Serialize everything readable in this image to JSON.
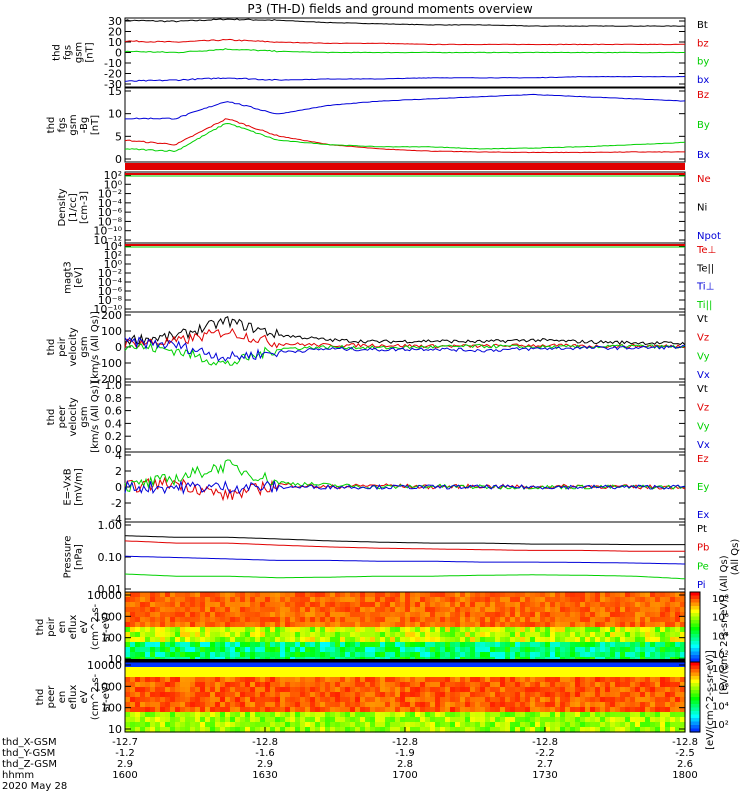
{
  "title": "P3 (TH-D) fields and ground moments overview",
  "colors": {
    "black": "#000000",
    "red": "#e00000",
    "green": "#00d000",
    "blue": "#0000d8"
  },
  "chart_data": [
    {
      "type": "line",
      "panel": "fgs-gsm",
      "ylabel": [
        "thd",
        "fgs",
        "gsm",
        "[nT]"
      ],
      "yticks": [
        "30",
        "20",
        "10",
        "0",
        "-10",
        "-20",
        "-30"
      ],
      "ylim": [
        -30,
        30
      ],
      "series": [
        {
          "name": "Bt",
          "color": "#000000",
          "values": [
            28,
            27,
            29,
            28,
            26,
            25,
            24,
            24,
            23,
            23,
            23,
            23
          ]
        },
        {
          "name": "bz",
          "color": "#e00000",
          "values": [
            10,
            9,
            11,
            9,
            8,
            8,
            7,
            7,
            7,
            7,
            7,
            7
          ]
        },
        {
          "name": "by",
          "color": "#00d000",
          "values": [
            1,
            0,
            3,
            1,
            0,
            0,
            0,
            0,
            0,
            0,
            0,
            0
          ]
        },
        {
          "name": "bx",
          "color": "#0000d8",
          "values": [
            -25,
            -24,
            -22,
            -24,
            -23,
            -23,
            -22,
            -22,
            -22,
            -21,
            -21,
            -21
          ]
        }
      ]
    },
    {
      "type": "line",
      "panel": "fgs-gse",
      "ylabel": [
        "thd",
        "fgs",
        "gsm",
        "-Bg",
        "[nT]"
      ],
      "yticks": [
        "15",
        "10",
        "5",
        "0"
      ],
      "ylim": [
        -2,
        15
      ],
      "series": [
        {
          "name": "Bz",
          "color": "#e00000",
          "values": [
            3,
            2,
            8,
            4,
            2,
            1,
            0.5,
            0.3,
            0.2,
            0.2,
            0.3,
            0.3
          ]
        },
        {
          "name": "By",
          "color": "#00d000",
          "values": [
            1,
            0.5,
            7,
            3,
            2,
            1.5,
            1.5,
            1,
            1.2,
            1.5,
            2,
            2.5
          ]
        },
        {
          "name": "Bx",
          "color": "#0000d8",
          "values": [
            8,
            8,
            12,
            9,
            11,
            12,
            12.5,
            13,
            13.5,
            13,
            12.5,
            12
          ]
        }
      ]
    },
    {
      "type": "line",
      "panel": "density",
      "ylabel": [
        "Density",
        "[1/cc]",
        "[cm-3]"
      ],
      "yticks": [
        "10²",
        "10⁰",
        "10⁻²",
        "10⁻⁴",
        "10⁻⁶",
        "10⁻⁸",
        "10⁻¹⁰",
        "10⁻¹²"
      ],
      "series": [
        {
          "name": "Ne",
          "color": "#e00000"
        },
        {
          "name": "Ni",
          "color": "#000000"
        },
        {
          "name": "Npot",
          "color": "#0000d8"
        }
      ]
    },
    {
      "type": "line",
      "panel": "temperature",
      "ylabel": [
        "magt3",
        "[eV]"
      ],
      "yticks": [
        "10⁴",
        "10²",
        "10⁰",
        "10⁻²",
        "10⁻⁴",
        "10⁻⁶",
        "10⁻⁸",
        "10⁻¹⁰"
      ],
      "series": [
        {
          "name": "Te⊥",
          "color": "#e00000"
        },
        {
          "name": "Te||",
          "color": "#000000"
        },
        {
          "name": "Ti⊥",
          "color": "#0000d8"
        },
        {
          "name": "Ti||",
          "color": "#00d000"
        }
      ]
    },
    {
      "type": "line",
      "panel": "peir-velocity",
      "ylabel": [
        "thd",
        "peir",
        "velocity",
        "gsm",
        "[km/s (All Qs)]"
      ],
      "yticks": [
        "200",
        "100",
        "0",
        "-100",
        "-200"
      ],
      "ylim": [
        -200,
        200
      ],
      "series": [
        {
          "name": "Vt",
          "color": "#000000",
          "values": [
            40,
            60,
            150,
            70,
            40,
            30,
            35,
            30,
            40,
            30,
            25,
            20
          ]
        },
        {
          "name": "Vz",
          "color": "#e00000",
          "values": [
            20,
            30,
            90,
            20,
            10,
            10,
            5,
            5,
            10,
            5,
            5,
            5
          ]
        },
        {
          "name": "Vy",
          "color": "#00d000",
          "values": [
            10,
            -20,
            -100,
            -10,
            0,
            -5,
            0,
            5,
            0,
            0,
            5,
            0
          ]
        },
        {
          "name": "Vx",
          "color": "#0000d8",
          "values": [
            30,
            10,
            -60,
            -30,
            -10,
            -15,
            -10,
            -20,
            -10,
            -5,
            -5,
            0
          ]
        }
      ]
    },
    {
      "type": "line",
      "panel": "peer-velocity",
      "ylabel": [
        "thd",
        "peer",
        "velocity",
        "gsm",
        "[km/s (All Qs)]"
      ],
      "yticks": [
        "1.0",
        "0.8",
        "0.6",
        "0.4",
        "0.2",
        "0.0"
      ],
      "ylim": [
        0,
        1
      ],
      "series": [
        {
          "name": "Vt",
          "color": "#000000"
        },
        {
          "name": "Vz",
          "color": "#e00000"
        },
        {
          "name": "Vy",
          "color": "#00d000"
        },
        {
          "name": "Vx",
          "color": "#0000d8"
        }
      ]
    },
    {
      "type": "line",
      "panel": "efield",
      "ylabel": [
        "E=-VxB",
        "[mV/m]"
      ],
      "yticks": [
        "4",
        "2",
        "0",
        "-2",
        "-4"
      ],
      "ylim": [
        -4,
        4
      ],
      "series": [
        {
          "name": "Ez",
          "color": "#e00000",
          "values": [
            0,
            0.5,
            -1,
            0.3,
            0,
            0.2,
            0,
            0.1,
            0,
            0.1,
            0,
            0
          ]
        },
        {
          "name": "Ey",
          "color": "#00d000",
          "values": [
            0,
            1,
            2.5,
            0.5,
            0.2,
            0,
            0.1,
            0,
            0,
            0,
            0,
            0
          ]
        },
        {
          "name": "Ex",
          "color": "#0000d8",
          "values": [
            0,
            0,
            0,
            0,
            0,
            0,
            0,
            0,
            0,
            0,
            0,
            0
          ]
        }
      ]
    },
    {
      "type": "line",
      "panel": "pressure",
      "ylabel": [
        "Pressure",
        "[nPa]"
      ],
      "yticks": [
        "1.00",
        "0.10",
        "0.01"
      ],
      "ylim": [
        0.01,
        1.3
      ],
      "series": [
        {
          "name": "Pt",
          "color": "#000000",
          "values": [
            0.5,
            0.45,
            0.45,
            0.4,
            0.35,
            0.32,
            0.3,
            0.3,
            0.28,
            0.28,
            0.27,
            0.27
          ]
        },
        {
          "name": "Pb",
          "color": "#e00000",
          "values": [
            0.35,
            0.3,
            0.3,
            0.26,
            0.23,
            0.21,
            0.2,
            0.19,
            0.18,
            0.18,
            0.17,
            0.17
          ]
        },
        {
          "name": "Pe",
          "color": "#00d000",
          "values": [
            0.035,
            0.03,
            0.03,
            0.027,
            0.028,
            0.03,
            0.03,
            0.032,
            0.033,
            0.032,
            0.03,
            0.025
          ]
        },
        {
          "name": "Pi",
          "color": "#0000d8",
          "values": [
            0.12,
            0.11,
            0.1,
            0.09,
            0.09,
            0.085,
            0.085,
            0.08,
            0.08,
            0.078,
            0.075,
            0.07
          ]
        }
      ],
      "right_label": "(All Qs)"
    },
    {
      "type": "heatmap",
      "panel": "peir-spectrogram",
      "ylabel": [
        "thd",
        "peir",
        "en",
        "eflux",
        "eV",
        "(cm^2-s-",
        "sr-eV)"
      ],
      "yticks": [
        "10000",
        "1000",
        "100",
        "10"
      ],
      "colorbar": [
        "10⁸",
        "10⁶",
        "10⁴",
        "10²"
      ]
    },
    {
      "type": "heatmap",
      "panel": "peer-spectrogram",
      "ylabel": [
        "thd",
        "peer",
        "en",
        "eflux",
        "eV",
        "(cm^2-s-",
        "sr-eV)"
      ],
      "yticks": [
        "10000",
        "1000",
        "100",
        "10"
      ],
      "colorbar": [
        "10⁸",
        "10⁶",
        "10⁴",
        "10²"
      ]
    }
  ],
  "colorbar_label": "[eV/(cm^2-s-sr-eV)]",
  "colorbar_label2": "[eV/(cm^2-s-sr-eV)] (All Qs)",
  "xaxis": {
    "labels": [
      "thd_X-GSM",
      "thd_Y-GSM",
      "thd_Z-GSM",
      "hhmm",
      "2020 May 28"
    ],
    "columns": [
      [
        "-12.7",
        "-1.2",
        "2.9",
        "1600"
      ],
      [
        "-12.8",
        "-1.6",
        "2.9",
        "1630"
      ],
      [
        "-12.8",
        "-1.9",
        "2.8",
        "1700"
      ],
      [
        "-12.8",
        "-2.2",
        "2.7",
        "1730"
      ],
      [
        "-12.8",
        "-2.5",
        "2.6",
        "1800"
      ]
    ]
  }
}
